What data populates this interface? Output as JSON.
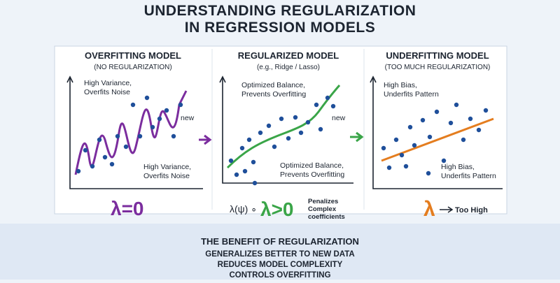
{
  "title": {
    "lines": [
      "UNDERSTANDING REGULARIZATION",
      "IN REGRESSION MODELS"
    ]
  },
  "panels": [
    {
      "title": "OVERFITTING MODEL",
      "subtitle": "(NO REGULARIZATION)",
      "annotation_top": [
        "High Variance,",
        "Overfits Noise"
      ],
      "annotation_bottom": [
        "High Variance,",
        "Overfits Noise"
      ],
      "new_label": "new",
      "lambda": "λ=0"
    },
    {
      "title": "REGULARIZED MODEL",
      "subtitle": "(e.g., Ridge / Lasso)",
      "annotation_top": [
        "Optimized Balance,",
        "Prevents Overfitting"
      ],
      "annotation_bottom": [
        "Optimized Balance,",
        "Prevents Overfitting"
      ],
      "new_label": "new",
      "lambda_prefix": "λ(ψ) ∘",
      "lambda": "λ>0",
      "lambda_note": [
        "Penalizes",
        "Complex",
        "coefficients"
      ]
    },
    {
      "title": "UNDERFITTING MODEL",
      "subtitle": "(TOO MUCH REGULARIZATION)",
      "annotation_top": [
        "High Bias,",
        "Underfits Pattern"
      ],
      "annotation_bottom": [
        "High Bias,",
        "Underfits Pattern"
      ],
      "lambda": "λ",
      "lambda_note": [
        "Too High"
      ]
    }
  ],
  "benefit": {
    "title": "THE BENEFIT OF REGULARIZATION",
    "points": [
      "GENERALIZES BETTER TO NEW DATA",
      "REDUCES MODEL COMPLEXITY",
      "CONTROLS OVERFITTING"
    ]
  }
}
